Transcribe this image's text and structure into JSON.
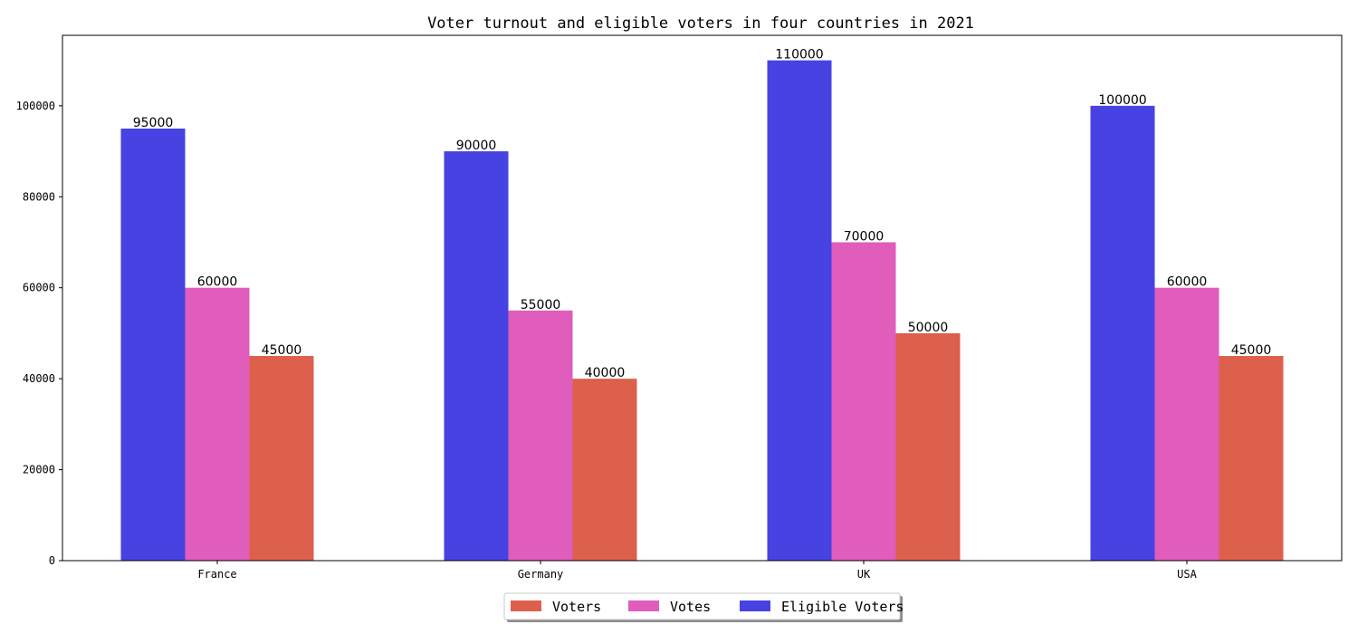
{
  "chart_data": {
    "type": "bar",
    "title": "Voter turnout and eligible voters in four countries in 2021",
    "categories": [
      "France",
      "Germany",
      "UK",
      "USA"
    ],
    "series": [
      {
        "name": "Eligible Voters",
        "color": "#4742e2",
        "values": [
          95000,
          90000,
          110000,
          100000
        ]
      },
      {
        "name": "Votes",
        "color": "#e05dbb",
        "values": [
          60000,
          55000,
          70000,
          60000
        ]
      },
      {
        "name": "Voters",
        "color": "#dc604c",
        "values": [
          45000,
          40000,
          50000,
          45000
        ]
      }
    ],
    "legend_order": [
      "Voters",
      "Votes",
      "Eligible Voters"
    ],
    "legend_position": "bottom-center",
    "ylim": [
      0,
      115500
    ],
    "yticks": [
      "0",
      "20000",
      "40000",
      "60000",
      "80000",
      "100000"
    ],
    "ytick_values": [
      0,
      20000,
      40000,
      60000,
      80000,
      100000
    ],
    "grid": false
  }
}
